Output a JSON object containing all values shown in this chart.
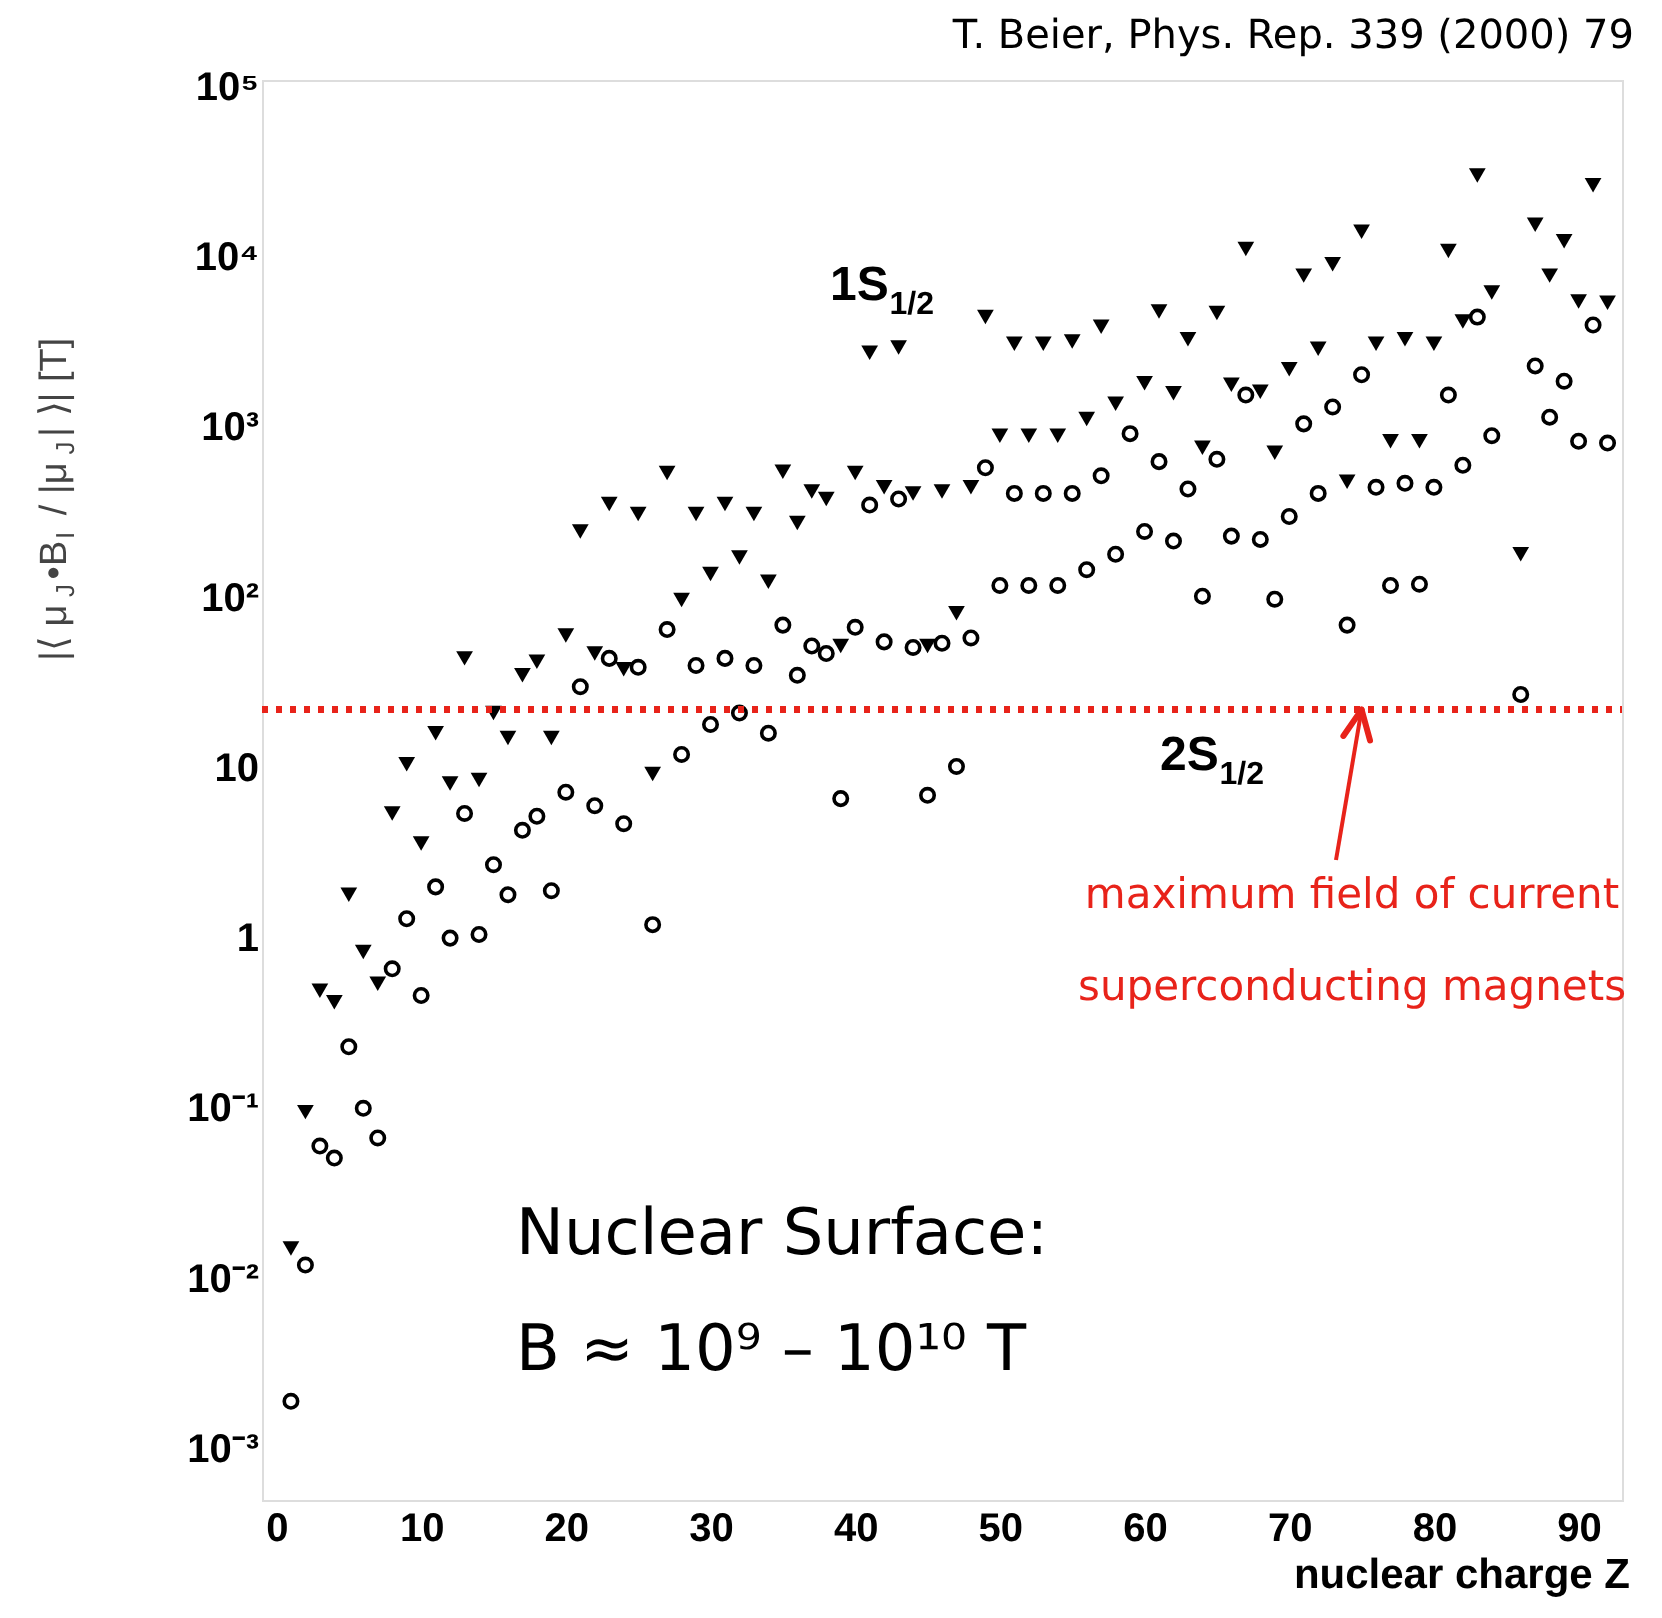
{
  "chart_data": {
    "type": "scatter",
    "xlabel": "nuclear charge Z",
    "ylabel": "|⟨ μ$_{J}$•B$_{I}$ / |μ$_{J}$| ⟩| [T]",
    "xlim": [
      -1,
      93
    ],
    "xticks": [
      0,
      10,
      20,
      30,
      40,
      50,
      60,
      70,
      80,
      90
    ],
    "ylim": [
      0.0005,
      110000
    ],
    "log": "y",
    "yticks": [
      {
        "value": 0.001,
        "label": "10⁻³"
      },
      {
        "value": 0.01,
        "label": "10⁻²"
      },
      {
        "value": 0.1,
        "label": "10⁻¹"
      },
      1,
      10,
      {
        "value": 100,
        "label": "10²"
      },
      {
        "value": 1000,
        "label": "10³"
      },
      {
        "value": 10000,
        "label": "10⁴"
      },
      {
        "value": 100000,
        "label": "10⁵"
      }
    ],
    "grid": false,
    "legend": false,
    "series": [
      {
        "name": "1S$_{1/2}$",
        "color": "#000000",
        "marker": "triangle",
        "x": [
          1,
          2,
          3,
          4,
          5,
          6,
          7,
          8,
          9,
          10,
          11,
          12,
          13,
          14,
          15,
          16,
          17,
          18,
          19,
          20,
          21,
          22,
          23,
          24,
          25,
          26,
          27,
          28,
          29,
          30,
          31,
          32,
          33,
          34,
          35,
          36,
          37,
          38,
          39,
          40,
          41,
          42,
          43,
          44,
          45,
          46,
          47,
          48,
          49,
          50,
          51,
          52,
          53,
          54,
          55,
          56,
          57,
          58,
          60,
          61,
          62,
          63,
          64,
          65,
          66,
          67,
          68,
          69,
          70,
          71,
          72,
          73,
          74,
          75,
          76,
          77,
          78,
          79,
          80,
          81,
          82,
          83,
          84,
          86,
          87,
          88,
          89,
          90,
          91,
          92
        ],
        "values": [
          0.015,
          0.095,
          0.49,
          0.42,
          1.8,
          0.83,
          0.54,
          5.4,
          10.5,
          3.6,
          16,
          8.1,
          44,
          8.5,
          21,
          15,
          35,
          42,
          15,
          60,
          245,
          47,
          355,
          38,
          310,
          9.2,
          540,
          97,
          310,
          138,
          355,
          172,
          310,
          124,
          550,
          275,
          420,
          380,
          52,
          540,
          2750,
          445,
          2950,
          410,
          52,
          420,
          81,
          445,
          4450,
          895,
          3100,
          895,
          3100,
          895,
          3200,
          1120,
          3900,
          1380,
          1820,
          4800,
          1590,
          3300,
          760,
          4700,
          1780,
          11200,
          1620,
          710,
          2200,
          7800,
          2900,
          9100,
          480,
          14100,
          3100,
          830,
          3300,
          830,
          3100,
          10900,
          4200,
          30200,
          6200,
          180,
          15500,
          7800,
          12400,
          5500,
          26500,
          5400
        ]
      },
      {
        "name": "2S$_{1/2}$",
        "color": "#000000",
        "marker": "circle",
        "x": [
          1,
          2,
          3,
          4,
          5,
          6,
          7,
          8,
          9,
          10,
          11,
          12,
          13,
          14,
          15,
          16,
          17,
          18,
          19,
          20,
          21,
          22,
          23,
          24,
          25,
          26,
          27,
          28,
          29,
          30,
          31,
          32,
          33,
          34,
          35,
          36,
          37,
          38,
          39,
          40,
          41,
          42,
          43,
          44,
          45,
          46,
          47,
          48,
          49,
          50,
          51,
          52,
          53,
          54,
          55,
          56,
          57,
          58,
          59,
          60,
          61,
          62,
          63,
          64,
          65,
          66,
          67,
          68,
          69,
          70,
          71,
          72,
          73,
          74,
          75,
          76,
          77,
          78,
          79,
          80,
          81,
          82,
          83,
          84,
          86,
          87,
          88,
          89,
          90,
          91,
          92
        ],
        "values": [
          0.0019,
          0.012,
          0.06,
          0.051,
          0.23,
          0.1,
          0.067,
          0.66,
          1.3,
          0.46,
          2.0,
          1.0,
          5.4,
          1.05,
          2.7,
          1.8,
          4.3,
          5.2,
          1.9,
          7.2,
          30,
          6.0,
          44,
          4.7,
          39,
          1.2,
          65,
          12,
          40,
          18,
          44,
          21,
          40,
          16,
          69,
          35,
          52,
          47,
          6.6,
          67,
          350,
          55,
          380,
          51,
          6.9,
          54,
          10.2,
          58,
          580,
          118,
          410,
          118,
          410,
          118,
          410,
          146,
          520,
          180,
          920,
          245,
          630,
          215,
          435,
          102,
          650,
          230,
          1550,
          220,
          98,
          300,
          1050,
          410,
          1320,
          69,
          2040,
          445,
          118,
          470,
          120,
          445,
          1550,
          600,
          4450,
          895,
          27,
          2300,
          1150,
          1870,
          830,
          4000,
          810
        ]
      }
    ],
    "ref_lines": [
      {
        "axis": "y",
        "value": 22,
        "color": "#e8231a",
        "line_style": "dotted"
      }
    ],
    "annotations": [
      "T. Beier, Phys. Rep. 339 (2000) 79",
      "Nuclear Surface:",
      "B ≈ 10⁹ – 10¹⁰ T",
      {
        "text": "maximum field of current\nsuperconducting magnets",
        "x": 75,
        "y": 22
      }
    ]
  }
}
